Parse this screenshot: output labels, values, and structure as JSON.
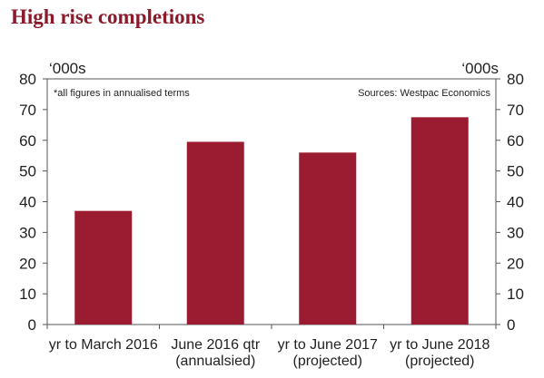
{
  "chart_data": {
    "type": "bar",
    "title": "High rise completions",
    "y_unit_left": "‘000s",
    "y_unit_right": "‘000s",
    "note": "*all figures in annualised terms",
    "source": "Sources: Westpac Economics",
    "categories": [
      [
        "yr to March 2016"
      ],
      [
        "June 2016 qtr",
        "(annualsied)"
      ],
      [
        "yr to June 2017",
        "(projected)"
      ],
      [
        "yr to June 2018",
        "(projected)"
      ]
    ],
    "values": [
      37,
      59.5,
      56,
      67.5
    ],
    "ylim": [
      0,
      80
    ],
    "yticks": [
      0,
      10,
      20,
      30,
      40,
      50,
      60,
      70,
      80
    ],
    "grid": false,
    "bar_color": "#9b1b30"
  }
}
